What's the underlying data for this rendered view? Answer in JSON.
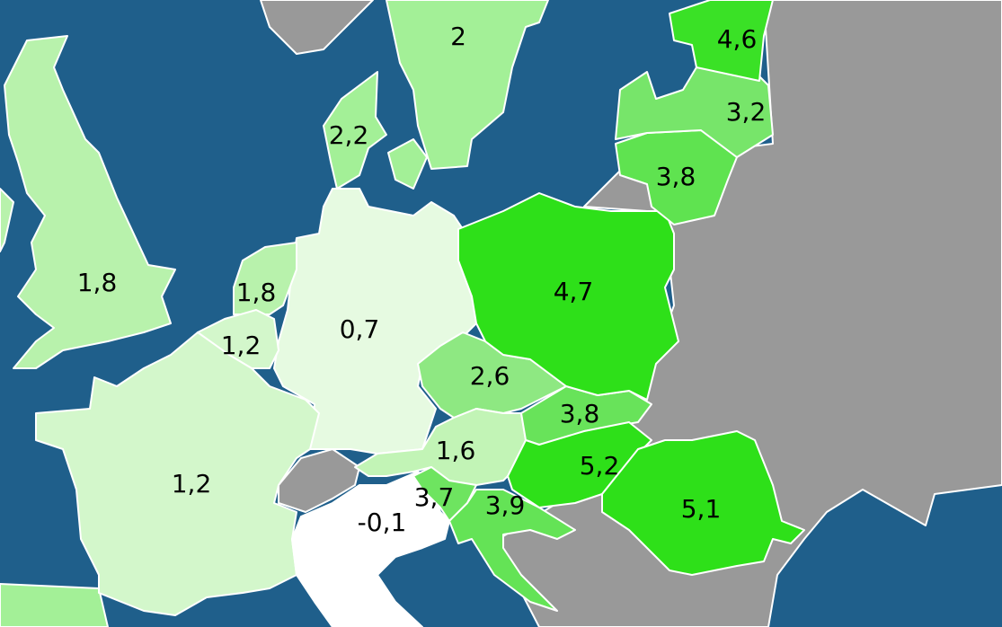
{
  "regions": [
    {
      "value": 1.8,
      "label": "1,8",
      "color": "#b8f2ac"
    },
    {
      "value": 2,
      "label": "2",
      "color": "#a3f097"
    },
    {
      "value": 2.2,
      "label": "2,2",
      "color": "#a3f097"
    },
    {
      "value": 0.7,
      "label": "0,7",
      "color": "#e6fae1"
    },
    {
      "value": 1.8,
      "label": "1,8",
      "color": "#b8f2ac"
    },
    {
      "value": 1.2,
      "label": "1,2",
      "color": "#d3f7cb"
    },
    {
      "value": 1.2,
      "label": "1,2",
      "color": "#d3f7cb"
    },
    {
      "value": -0.1,
      "label": "-0,1",
      "color": "#ffffff"
    },
    {
      "value": 2.6,
      "label": "2,6",
      "color": "#8ee882"
    },
    {
      "value": 1.6,
      "label": "1,6",
      "color": "#c2f4b6"
    },
    {
      "value": 3.7,
      "label": "3,7",
      "color": "#6ee460"
    },
    {
      "value": 3.9,
      "label": "3,9",
      "color": "#64e356"
    },
    {
      "value": 3.8,
      "label": "3,8",
      "color": "#68e35a"
    },
    {
      "value": 5.2,
      "label": "5,2",
      "color": "#2ee019"
    },
    {
      "value": 5.1,
      "label": "5,1",
      "color": "#2ee019"
    },
    {
      "value": 4.7,
      "label": "4,7",
      "color": "#2ee019"
    },
    {
      "value": 3.8,
      "label": "3,8",
      "color": "#5fe350"
    },
    {
      "value": 3.2,
      "label": "3,2",
      "color": "#77e56a"
    },
    {
      "value": 4.6,
      "label": "4,6",
      "color": "#3ae126"
    }
  ]
}
